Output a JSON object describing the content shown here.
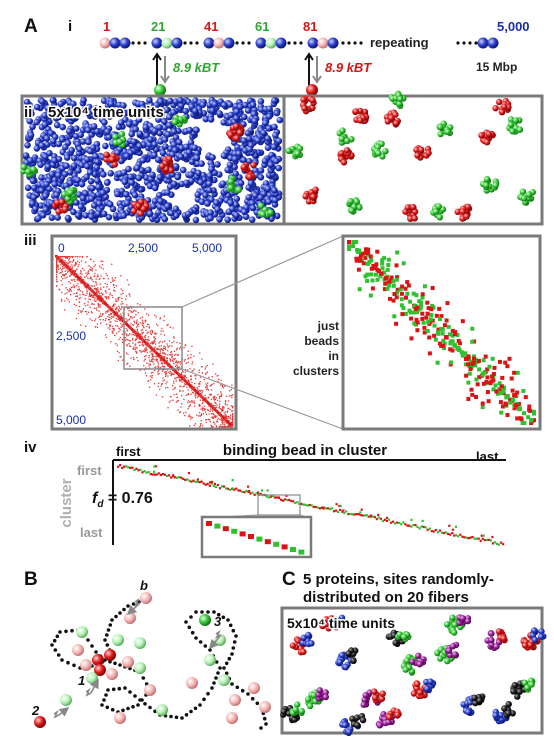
{
  "panel_labels": {
    "A": "A",
    "B": "B",
    "C": "C"
  },
  "sub_labels": {
    "i": "i",
    "ii": "ii",
    "iii": "iii",
    "iv": "iv"
  },
  "strand": {
    "bead_numbers": [
      "1",
      "21",
      "41",
      "61",
      "81",
      "5,000"
    ],
    "repeating_label": "repeating",
    "length_label": "15 Mbp",
    "energy_green": "8.9 kBT",
    "energy_red": "8.9 kBT"
  },
  "sim_time": "5x10⁴ time units",
  "contact_map": {
    "ticks_top": [
      "0",
      "2,500",
      "5,000"
    ],
    "ticks_left": [
      "2,500",
      "5,000"
    ],
    "zoom_caption": [
      "just",
      "beads",
      "in",
      "clusters"
    ]
  },
  "iv": {
    "x_title": "binding bead in cluster",
    "x_first": "first",
    "x_last": "last",
    "y_title": "cluster",
    "y_first": "first",
    "y_last": "last",
    "fd": "fd = 0.76"
  },
  "schematic_numbers": [
    "1",
    "2",
    "3"
  ],
  "schematic_b": "b",
  "panel_c_title_1": "5 proteins, sites randomly-",
  "panel_c_title_2": "distributed on 20 fibers",
  "panel_c_time": "5x10⁴ time units",
  "colors": {
    "blue": "#1a2fb0",
    "red": "#d81414",
    "green": "#2fc12f",
    "pink": "#f0a6a6",
    "lightgreen": "#a8eba8",
    "purple": "#9a1f9a",
    "black": "#111111"
  }
}
